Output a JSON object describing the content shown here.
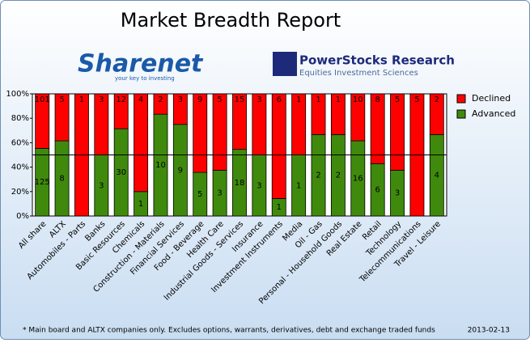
{
  "header": {
    "sharenet": "Sharenet",
    "sharenet_tagline": "your key to investing",
    "powerstocks": "PowerStocks  Research",
    "powerstocks_tagline": "Equities Investment Sciences"
  },
  "chart_data": {
    "type": "bar",
    "stacking": "percent",
    "title": "Market Breadth Report",
    "categories": [
      "All share",
      "ALTX",
      "Automobiles - Parts",
      "Banks",
      "Basic Resources",
      "Chemicals",
      "Construction - Materials",
      "Financial Services",
      "Food - Beverage",
      "Health Care",
      "Industrial Goods - Services",
      "Insurance",
      "Investment Instruments",
      "Media",
      "Oil - Gas",
      "Personal - Household Goods",
      "Real Estate",
      "Retail",
      "Technology",
      "Telecommunications",
      "Travel - Leisure"
    ],
    "series": [
      {
        "name": "Advanced",
        "color": "#3f8a0c",
        "values": [
          125,
          8,
          0,
          3,
          30,
          1,
          10,
          9,
          5,
          3,
          18,
          3,
          1,
          1,
          2,
          2,
          16,
          6,
          3,
          0,
          4
        ]
      },
      {
        "name": "Declined",
        "color": "#ff0000",
        "values": [
          101,
          5,
          1,
          3,
          12,
          4,
          2,
          3,
          9,
          5,
          15,
          3,
          6,
          1,
          1,
          1,
          10,
          8,
          5,
          5,
          2
        ]
      }
    ],
    "ylim": [
      0,
      100
    ],
    "yticks": [
      {
        "value": 0,
        "label": "0%"
      },
      {
        "value": 20,
        "label": "20%"
      },
      {
        "value": 40,
        "label": "40%"
      },
      {
        "value": 60,
        "label": "60%"
      },
      {
        "value": 80,
        "label": "80%"
      },
      {
        "value": 100,
        "label": "100%"
      }
    ],
    "reference_line": 50,
    "legend_position": "right",
    "footnote": "* Main board and ALTX companies only. Excludes options, warrants, derivatives, debt and exchange traded funds",
    "date": "2013-02-13"
  }
}
